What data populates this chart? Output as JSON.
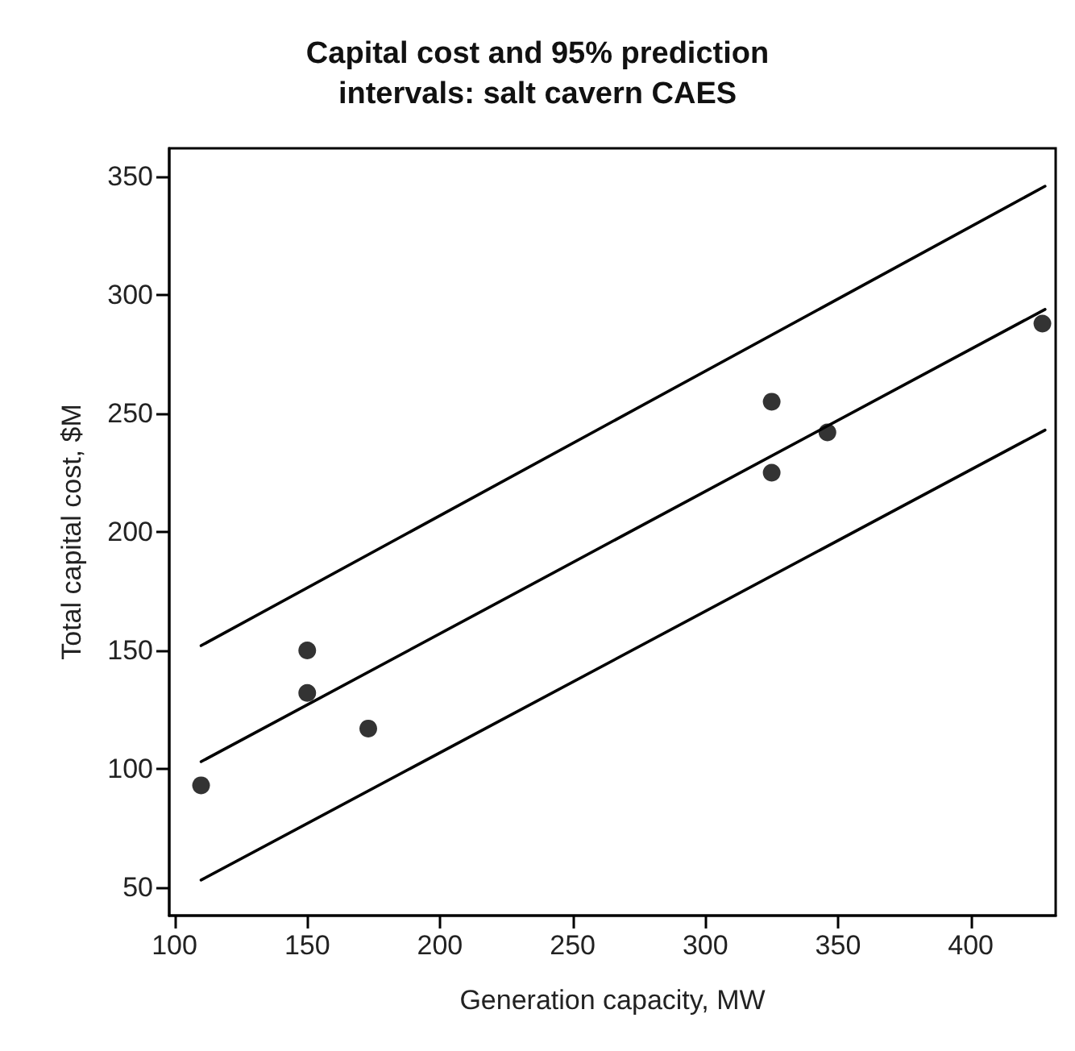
{
  "chart_data": {
    "type": "scatter",
    "title": "Capital cost and 95% prediction\nintervals: salt cavern CAES",
    "xlabel": "Generation capacity, MW",
    "ylabel": "Total capital cost, $M",
    "series": [
      {
        "color": "#000000",
        "x": [
          110,
          150,
          150,
          173,
          325,
          325,
          346,
          427
        ],
        "values": [
          93,
          150,
          132,
          117,
          255,
          225,
          242,
          288
        ]
      },
      {
        "type": "line",
        "marker": "none",
        "color": "#000000",
        "x": [
          110,
          428
        ],
        "values": [
          103,
          294
        ]
      },
      {
        "type": "line",
        "marker": "none",
        "color": "#000000",
        "x": [
          110,
          428
        ],
        "values": [
          152,
          346
        ]
      },
      {
        "type": "line",
        "marker": "none",
        "color": "#000000",
        "x": [
          110,
          428
        ],
        "values": [
          53,
          243
        ]
      }
    ],
    "marker": "circle",
    "line_style": "solid",
    "grid": false,
    "xlim": [
      98,
      432
    ],
    "xticks": [
      100,
      150,
      200,
      250,
      300,
      350,
      400
    ],
    "ylim": [
      38,
      362
    ],
    "yticks": [
      50,
      100,
      150,
      200,
      250,
      300,
      350
    ]
  }
}
